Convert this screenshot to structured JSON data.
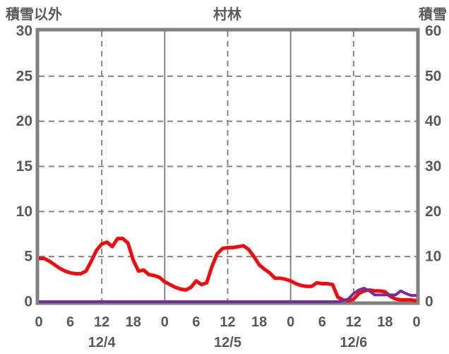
{
  "header": {
    "left_axis_title": "積雪以外",
    "chart_title": "村林",
    "right_axis_title": "積雪"
  },
  "colors": {
    "background": "#ffffff",
    "text": "#595959",
    "plot_border": "#808080",
    "gridline": "#848484",
    "red_line": "#f00c0c",
    "purple_line": "#7030a0"
  },
  "chart_data": {
    "type": "line",
    "title": "村林",
    "x_unit": "hour",
    "x_range_hours": [
      0,
      72
    ],
    "x_tick_interval_hours": 6,
    "x_tick_labels": [
      "0",
      "6",
      "12",
      "18",
      "0",
      "6",
      "12",
      "18",
      "0",
      "6",
      "12",
      "18",
      "0"
    ],
    "date_labels": [
      {
        "label": "12/4",
        "center_hour": 12
      },
      {
        "label": "12/5",
        "center_hour": 36
      },
      {
        "label": "12/6",
        "center_hour": 60
      }
    ],
    "left_axis": {
      "title": "積雪以外",
      "min": 0,
      "max": 30,
      "ticks": [
        30,
        25,
        20,
        15,
        10,
        5,
        0
      ]
    },
    "right_axis": {
      "title": "積雪",
      "min": 0,
      "max": 60,
      "ticks": [
        60,
        50,
        40,
        30,
        20,
        10,
        0
      ]
    },
    "gridlines": {
      "horizontal_left_values": [
        5,
        10,
        15,
        20,
        25
      ],
      "vertical_dashed_hours": [
        12,
        36,
        60
      ],
      "vertical_solid_hours": [
        24,
        48
      ]
    },
    "series": [
      {
        "name": "積雪以外",
        "axis": "left",
        "color": "#f00c0c",
        "stroke_width": 5,
        "values": [
          4.8,
          4.8,
          4.5,
          4.1,
          3.7,
          3.4,
          3.2,
          3.1,
          3.1,
          3.4,
          4.5,
          5.7,
          6.4,
          6.6,
          6.1,
          7.0,
          7.0,
          6.5,
          4.6,
          3.4,
          3.5,
          3.0,
          2.9,
          2.7,
          2.2,
          1.9,
          1.6,
          1.4,
          1.3,
          1.6,
          2.3,
          1.9,
          2.1,
          3.9,
          5.3,
          5.9,
          6.0,
          6.0,
          6.1,
          6.2,
          5.8,
          5.0,
          4.1,
          3.6,
          3.2,
          2.6,
          2.6,
          2.5,
          2.3,
          2.0,
          1.8,
          1.7,
          1.7,
          2.1,
          2.0,
          2.0,
          1.9,
          0.5,
          0.2,
          0.1,
          0.3,
          0.9,
          1.2,
          1.3,
          1.2,
          1.2,
          1.1,
          0.6,
          0.3,
          0.2,
          0.2,
          0.2,
          0.1
        ]
      },
      {
        "name": "積雪",
        "axis": "right",
        "color": "#7030a0",
        "stroke_width": 4,
        "values": [
          0,
          0,
          0,
          0,
          0,
          0,
          0,
          0,
          0,
          0,
          0,
          0,
          0,
          0,
          0,
          0,
          0,
          0,
          0,
          0,
          0,
          0,
          0,
          0,
          0,
          0,
          0,
          0,
          0,
          0,
          0,
          0,
          0,
          0,
          0,
          0,
          0,
          0,
          0,
          0,
          0,
          0,
          0,
          0,
          0,
          0,
          0,
          0,
          0,
          0,
          0,
          0,
          0,
          0,
          0,
          0,
          0,
          0,
          0.2,
          0.6,
          1.8,
          2.6,
          3.0,
          2.4,
          1.5,
          1.5,
          1.5,
          1.5,
          1.5,
          2.4,
          1.8,
          1.4,
          1.4
        ]
      }
    ]
  }
}
